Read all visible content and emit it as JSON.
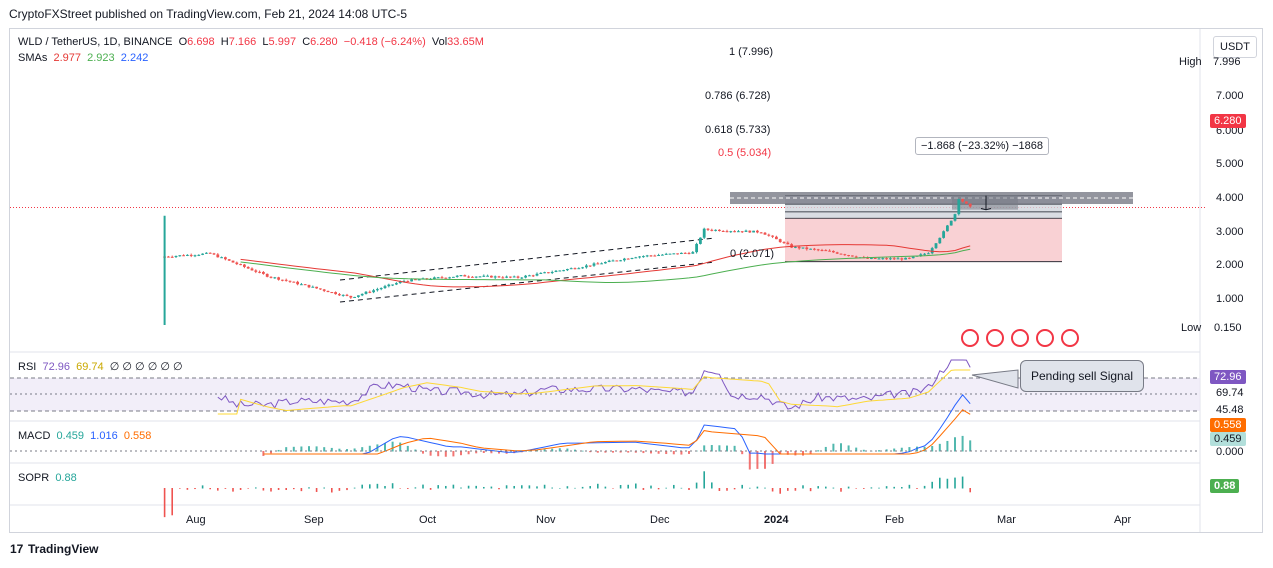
{
  "header": {
    "publisher": "CryptoFXStreet published on TradingView.com, Feb 21, 2024 14:08 UTC-5",
    "footer_brand": "TradingView",
    "currency": "USDT"
  },
  "legend": {
    "symbol": "WLD / TetherUS, 1D, BINANCE",
    "open_label": "O",
    "open": "6.698",
    "high_label": "H",
    "high": "7.166",
    "low_label": "L",
    "low": "5.997",
    "close_label": "C",
    "close": "6.280",
    "change": "−0.418 (−6.24%)",
    "vol_label": "Vol",
    "vol": "33.65M",
    "sma_label": "SMAs",
    "sma1": "2.977",
    "sma2": "2.923",
    "sma3": "2.242",
    "rsi_label": "RSI",
    "rsi1": "72.96",
    "rsi2": "69.74",
    "rsi_extra": "∅ ∅ ∅ ∅ ∅ ∅",
    "macd_label": "MACD",
    "macd1": "0.459",
    "macd2": "1.016",
    "macd3": "0.558",
    "sopr_label": "SOPR",
    "sopr": "0.88"
  },
  "colors": {
    "up": "#26a69a",
    "down": "#ef5350",
    "sma_red": "#e53935",
    "sma_green": "#4caf50",
    "sma_blue": "#2962ff",
    "rsi": "#7e57c2",
    "rsi_ma": "#fdd835",
    "macd": "#2962ff",
    "signal": "#ff6d00",
    "price_badge": "#f23645"
  },
  "annotations": {
    "fib": [
      {
        "label": "1 (7.996)",
        "value": 7.996
      },
      {
        "label": "0.786 (6.728)",
        "value": 6.728
      },
      {
        "label": "0.618 (5.733)",
        "value": 5.733
      },
      {
        "label": "0.5 (5.034)",
        "value": 5.034
      },
      {
        "label": "0 (2.071)",
        "value": 2.071
      }
    ],
    "measure": "−1.868 (−23.32%) −1868",
    "callout": "Pending sell Signal",
    "high_label": "High",
    "low_label": "Low"
  },
  "chart_data": {
    "type": "candlestick",
    "x_axis": {
      "ticks": [
        "Aug",
        "Sep",
        "Oct",
        "Nov",
        "Dec",
        "2024",
        "Feb",
        "Mar",
        "Apr"
      ]
    },
    "price_axis": {
      "scale": "log",
      "ticks": [
        "7.000",
        "6.000",
        "5.000",
        "4.000",
        "3.000",
        "2.000",
        "1.000"
      ],
      "tick_values": [
        7,
        6,
        5,
        4,
        3,
        2,
        1
      ],
      "high": "7.996",
      "last": "6.280",
      "low": "0.150"
    },
    "price_series_anchors": [
      [
        "Jul 24",
        2.3
      ],
      [
        "Aug 5",
        2.45
      ],
      [
        "Aug 20",
        1.55
      ],
      [
        "Sep 2",
        1.2
      ],
      [
        "Sep 11",
        1.0
      ],
      [
        "Sep 25",
        1.4
      ],
      [
        "Oct 10",
        1.55
      ],
      [
        "Oct 25",
        1.5
      ],
      [
        "Nov 10",
        1.85
      ],
      [
        "Nov 25",
        2.3
      ],
      [
        "Dec 10",
        2.5
      ],
      [
        "Dec 13",
        4.0
      ],
      [
        "Dec 28",
        3.8
      ],
      [
        "Jan 5",
        2.8
      ],
      [
        "Jan 15",
        2.55
      ],
      [
        "Jan 25",
        2.2
      ],
      [
        "Feb 5",
        2.2
      ],
      [
        "Feb 10",
        2.5
      ],
      [
        "Feb 14",
        3.8
      ],
      [
        "Feb 17",
        5.5
      ],
      [
        "Feb 18",
        7.6
      ],
      [
        "Feb 21",
        6.28
      ]
    ],
    "rsi_axis": {
      "ticks": [
        "45.48"
      ],
      "last": "72.96",
      "ma": "69.74"
    },
    "macd_axis": {
      "ticks": [
        "0.000"
      ],
      "macd": "0.459",
      "signal": "0.558"
    },
    "sopr_axis": {
      "last": "0.88"
    }
  }
}
